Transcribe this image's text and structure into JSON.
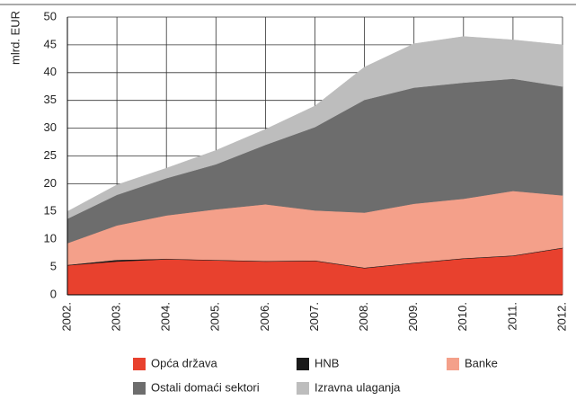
{
  "chart_data": {
    "type": "stacked_area",
    "y_label": "mlrd. EUR",
    "categories": [
      "2002.",
      "2003.",
      "2004.",
      "2005.",
      "2006.",
      "2007.",
      "2008.",
      "2009.",
      "2010.",
      "2011.",
      "2012."
    ],
    "series": [
      {
        "name": "Opća država",
        "color": "#e8412e",
        "values": [
          5.3,
          6.0,
          6.4,
          6.2,
          6.0,
          6.1,
          4.8,
          5.7,
          6.5,
          7.0,
          8.4
        ]
      },
      {
        "name": "HNB",
        "color": "#1a1a1a",
        "values": [
          0.1,
          0.3,
          0.1,
          0.1,
          0.1,
          0.1,
          0.1,
          0.1,
          0.1,
          0.1,
          0.1
        ]
      },
      {
        "name": "Banke",
        "color": "#f4a08a",
        "values": [
          3.9,
          6.2,
          7.8,
          9.1,
          10.2,
          9.0,
          9.9,
          10.6,
          10.7,
          11.6,
          9.4
        ]
      },
      {
        "name": "Ostali domaći sektori",
        "color": "#6d6d6d",
        "values": [
          4.4,
          5.5,
          6.7,
          8.1,
          10.7,
          15.0,
          20.3,
          20.9,
          20.9,
          20.2,
          19.6
        ]
      },
      {
        "name": "Izravna ulaganja",
        "color": "#bdbdbd",
        "values": [
          1.3,
          1.8,
          1.8,
          2.5,
          2.8,
          3.8,
          5.9,
          7.9,
          8.3,
          7.0,
          7.5
        ]
      }
    ],
    "ylim": [
      0,
      50
    ],
    "yticks": [
      0,
      5,
      10,
      15,
      20,
      25,
      30,
      35,
      40,
      45,
      50
    ],
    "grid": true
  }
}
